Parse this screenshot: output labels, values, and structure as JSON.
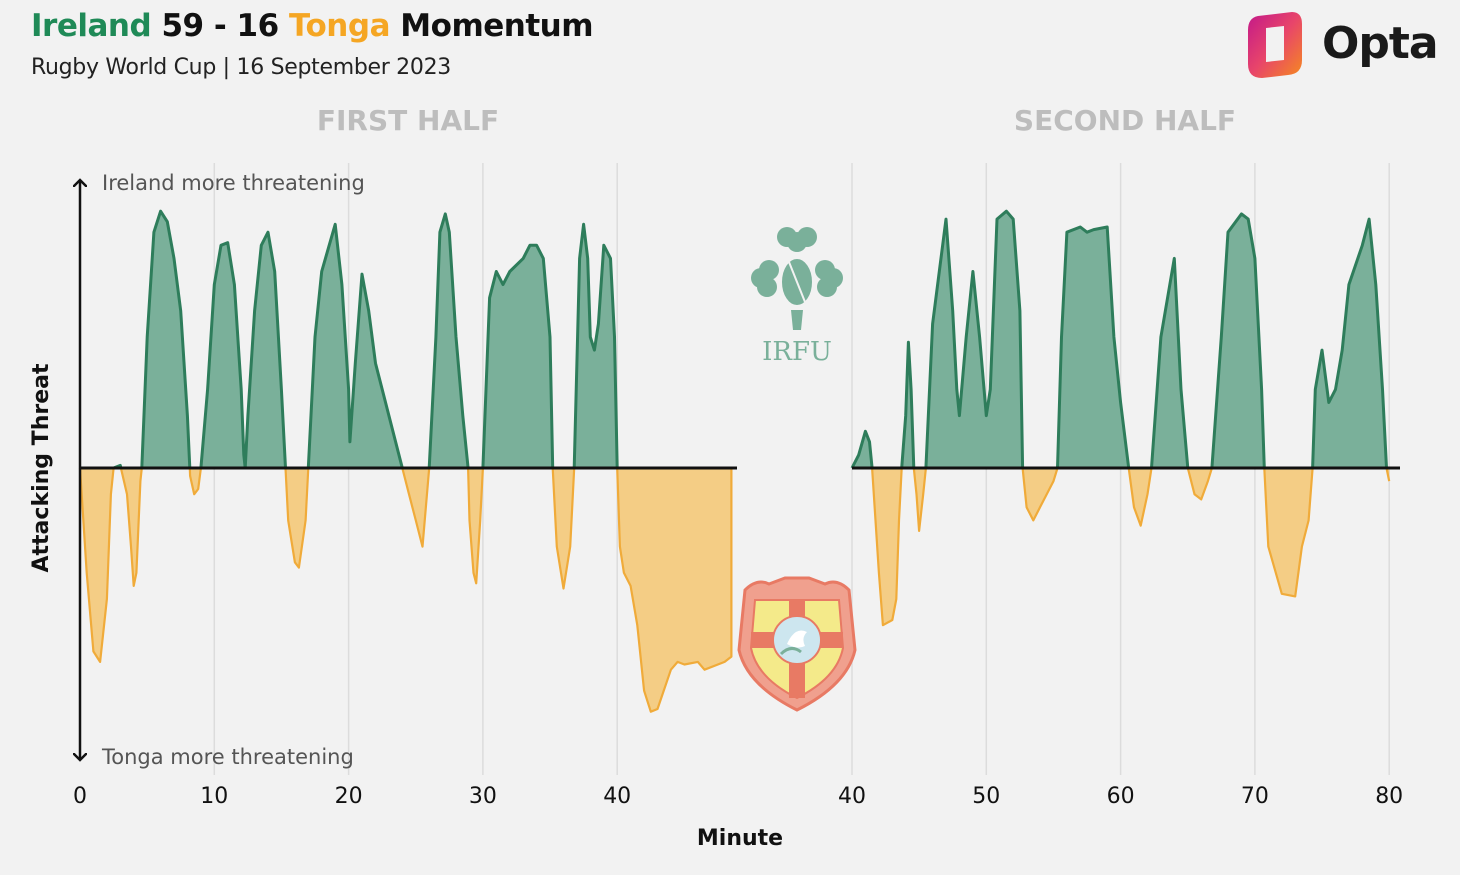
{
  "header": {
    "team_home": "Ireland",
    "score": "59 - 16",
    "team_away": "Tonga",
    "title_suffix": "Momentum",
    "subtitle": "Rugby World Cup | 16 September 2023"
  },
  "logo": {
    "text": "Opta",
    "icon": "opta-icon"
  },
  "colors": {
    "ireland": "#7ab09a",
    "ireland_line": "#2e7d5b",
    "tonga": "#f4cd85",
    "tonga_line": "#f0ab3a",
    "title_ireland": "#1f8a57",
    "title_tonga": "#f5a623",
    "grid": "#dcdcdc",
    "half_label": "#bdbdbd"
  },
  "badges": {
    "ireland": {
      "icon": "irfu-shamrock-icon",
      "text": "IRFU"
    },
    "tonga": {
      "icon": "tonga-shield-icon"
    }
  },
  "chart_data": {
    "type": "area",
    "title": "Ireland 59 - 16 Tonga Momentum",
    "subtitle": "Rugby World Cup | 16 September 2023",
    "xlabel": "Minute",
    "ylabel": "Attacking Threat",
    "top_annotation": "Ireland more threatening",
    "bottom_annotation": "Tonga more threatening",
    "y_range": [
      -1,
      1
    ],
    "grid": true,
    "panels": [
      {
        "label": "FIRST HALF",
        "x_range": [
          0,
          48.5
        ],
        "ticks": [
          0,
          10,
          20,
          30,
          40
        ],
        "points": [
          [
            0,
            0
          ],
          [
            0.5,
            -0.4
          ],
          [
            1,
            -0.7
          ],
          [
            1.5,
            -0.74
          ],
          [
            2,
            -0.5
          ],
          [
            2.3,
            -0.1
          ],
          [
            2.5,
            0
          ],
          [
            3,
            0.01
          ],
          [
            3.5,
            -0.1
          ],
          [
            3.8,
            -0.3
          ],
          [
            4,
            -0.45
          ],
          [
            4.2,
            -0.4
          ],
          [
            4.5,
            -0.05
          ],
          [
            4.6,
            0
          ],
          [
            5,
            0.5
          ],
          [
            5.5,
            0.9
          ],
          [
            6,
            0.98
          ],
          [
            6.5,
            0.94
          ],
          [
            7,
            0.8
          ],
          [
            7.5,
            0.6
          ],
          [
            8,
            0.2
          ],
          [
            8.2,
            -0.03
          ],
          [
            8.5,
            -0.1
          ],
          [
            8.8,
            -0.08
          ],
          [
            9,
            0
          ],
          [
            9.5,
            0.3
          ],
          [
            10,
            0.7
          ],
          [
            10.5,
            0.85
          ],
          [
            11,
            0.86
          ],
          [
            11.5,
            0.7
          ],
          [
            12,
            0.3
          ],
          [
            12.2,
            0.05
          ],
          [
            12.3,
            0
          ],
          [
            12.5,
            0.2
          ],
          [
            13,
            0.6
          ],
          [
            13.5,
            0.85
          ],
          [
            14,
            0.9
          ],
          [
            14.5,
            0.75
          ],
          [
            15,
            0.3
          ],
          [
            15.3,
            0
          ],
          [
            15.5,
            -0.2
          ],
          [
            16,
            -0.36
          ],
          [
            16.3,
            -0.38
          ],
          [
            16.8,
            -0.2
          ],
          [
            17,
            0
          ],
          [
            17.5,
            0.5
          ],
          [
            18,
            0.75
          ],
          [
            19,
            0.93
          ],
          [
            19.5,
            0.7
          ],
          [
            20,
            0.3
          ],
          [
            20.1,
            0.1
          ],
          [
            20.5,
            0.4
          ],
          [
            21,
            0.74
          ],
          [
            21.5,
            0.6
          ],
          [
            22,
            0.4
          ],
          [
            23,
            0.2
          ],
          [
            24,
            0
          ],
          [
            24.5,
            -0.1
          ],
          [
            25,
            -0.2
          ],
          [
            25.5,
            -0.3
          ],
          [
            26,
            0
          ],
          [
            26.5,
            0.5
          ],
          [
            26.8,
            0.9
          ],
          [
            27.2,
            0.97
          ],
          [
            27.5,
            0.9
          ],
          [
            28,
            0.5
          ],
          [
            28.5,
            0.2
          ],
          [
            28.9,
            0
          ],
          [
            29,
            -0.2
          ],
          [
            29.3,
            -0.4
          ],
          [
            29.5,
            -0.44
          ],
          [
            29.8,
            -0.2
          ],
          [
            30,
            0
          ],
          [
            30.5,
            0.65
          ],
          [
            31,
            0.75
          ],
          [
            31.5,
            0.7
          ],
          [
            32,
            0.75
          ],
          [
            33,
            0.8
          ],
          [
            33.5,
            0.85
          ],
          [
            34,
            0.85
          ],
          [
            34.5,
            0.8
          ],
          [
            35,
            0.5
          ],
          [
            35.2,
            0
          ],
          [
            35.5,
            -0.3
          ],
          [
            36,
            -0.46
          ],
          [
            36.5,
            -0.3
          ],
          [
            36.8,
            0
          ],
          [
            37,
            0.4
          ],
          [
            37.2,
            0.8
          ],
          [
            37.5,
            0.93
          ],
          [
            37.8,
            0.8
          ],
          [
            38,
            0.5
          ],
          [
            38.3,
            0.45
          ],
          [
            38.6,
            0.55
          ],
          [
            39,
            0.85
          ],
          [
            39.5,
            0.8
          ],
          [
            39.8,
            0.5
          ],
          [
            40,
            0
          ],
          [
            40.2,
            -0.3
          ],
          [
            40.5,
            -0.4
          ],
          [
            41,
            -0.45
          ],
          [
            41.5,
            -0.6
          ],
          [
            42,
            -0.85
          ],
          [
            42.5,
            -0.93
          ],
          [
            43,
            -0.92
          ],
          [
            44,
            -0.77
          ],
          [
            44.5,
            -0.74
          ],
          [
            45,
            -0.75
          ],
          [
            46,
            -0.74
          ],
          [
            46.5,
            -0.77
          ],
          [
            48,
            -0.74
          ],
          [
            48.5,
            -0.72
          ],
          [
            48.5,
            0
          ]
        ]
      },
      {
        "label": "SECOND HALF",
        "x_range": [
          40,
          80.8
        ],
        "ticks": [
          40,
          50,
          60,
          70,
          80
        ],
        "points": [
          [
            40,
            0
          ],
          [
            40.5,
            0.05
          ],
          [
            41,
            0.14
          ],
          [
            41.3,
            0.1
          ],
          [
            41.5,
            0
          ],
          [
            42,
            -0.4
          ],
          [
            42.3,
            -0.6
          ],
          [
            43,
            -0.58
          ],
          [
            43.3,
            -0.5
          ],
          [
            43.5,
            -0.2
          ],
          [
            43.7,
            0
          ],
          [
            44,
            0.2
          ],
          [
            44.2,
            0.48
          ],
          [
            44.4,
            0.3
          ],
          [
            44.6,
            0
          ],
          [
            44.8,
            -0.1
          ],
          [
            45,
            -0.24
          ],
          [
            45.3,
            -0.1
          ],
          [
            45.5,
            0
          ],
          [
            46,
            0.55
          ],
          [
            46.5,
            0.75
          ],
          [
            47,
            0.95
          ],
          [
            47.5,
            0.6
          ],
          [
            47.8,
            0.3
          ],
          [
            48,
            0.2
          ],
          [
            48.5,
            0.5
          ],
          [
            49,
            0.75
          ],
          [
            49.5,
            0.5
          ],
          [
            50,
            0.2
          ],
          [
            50.3,
            0.3
          ],
          [
            50.8,
            0.95
          ],
          [
            51.5,
            0.98
          ],
          [
            52,
            0.95
          ],
          [
            52.5,
            0.6
          ],
          [
            52.7,
            0
          ],
          [
            53,
            -0.15
          ],
          [
            53.5,
            -0.2
          ],
          [
            54,
            -0.15
          ],
          [
            55,
            -0.05
          ],
          [
            55.3,
            0
          ],
          [
            55.6,
            0.5
          ],
          [
            56,
            0.9
          ],
          [
            57,
            0.92
          ],
          [
            57.5,
            0.9
          ],
          [
            58,
            0.91
          ],
          [
            59,
            0.92
          ],
          [
            59.5,
            0.5
          ],
          [
            60,
            0.25
          ],
          [
            60.6,
            0
          ],
          [
            61,
            -0.15
          ],
          [
            61.5,
            -0.22
          ],
          [
            62,
            -0.1
          ],
          [
            62.3,
            0
          ],
          [
            63,
            0.5
          ],
          [
            64,
            0.8
          ],
          [
            64.5,
            0.3
          ],
          [
            65,
            0
          ],
          [
            65.5,
            -0.1
          ],
          [
            66,
            -0.12
          ],
          [
            66.5,
            -0.05
          ],
          [
            66.8,
            0
          ],
          [
            67.5,
            0.5
          ],
          [
            68,
            0.9
          ],
          [
            69,
            0.97
          ],
          [
            69.5,
            0.95
          ],
          [
            70,
            0.8
          ],
          [
            70.5,
            0.3
          ],
          [
            70.7,
            0
          ],
          [
            71,
            -0.3
          ],
          [
            72,
            -0.48
          ],
          [
            73,
            -0.49
          ],
          [
            73.5,
            -0.3
          ],
          [
            74,
            -0.2
          ],
          [
            74.3,
            0
          ],
          [
            74.5,
            0.3
          ],
          [
            75,
            0.45
          ],
          [
            75.5,
            0.25
          ],
          [
            76,
            0.3
          ],
          [
            76.5,
            0.45
          ],
          [
            77,
            0.7
          ],
          [
            78,
            0.85
          ],
          [
            78.5,
            0.95
          ],
          [
            79,
            0.7
          ],
          [
            79.5,
            0.3
          ],
          [
            79.8,
            0
          ],
          [
            80,
            -0.05
          ]
        ]
      }
    ]
  }
}
